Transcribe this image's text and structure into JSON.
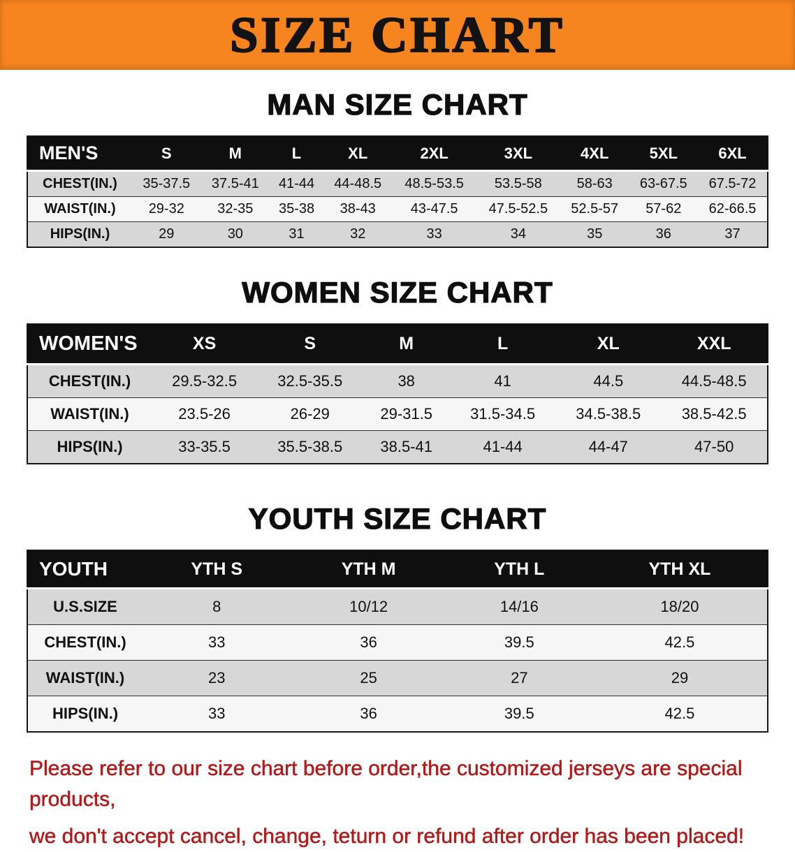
{
  "banner": {
    "title": "SIZE CHART"
  },
  "colors": {
    "banner_bg": "#f6841f",
    "banner_text": "#131313",
    "table_header_bg": "#0f0f0f",
    "table_header_text": "#ffffff",
    "row_shade": "#d7d7d7",
    "row_light": "#f6f6f6",
    "footer_text": "#b11a1a"
  },
  "chart_data": [
    {
      "type": "table",
      "title": "MAN SIZE CHART",
      "corner_label": "MEN'S",
      "columns": [
        "S",
        "M",
        "L",
        "XL",
        "2XL",
        "3XL",
        "4XL",
        "5XL",
        "6XL"
      ],
      "rows": [
        {
          "label": "CHEST(IN.)",
          "values": [
            "35-37.5",
            "37.5-41",
            "41-44",
            "44-48.5",
            "48.5-53.5",
            "53.5-58",
            "58-63",
            "63-67.5",
            "67.5-72"
          ]
        },
        {
          "label": "WAIST(IN.)",
          "values": [
            "29-32",
            "32-35",
            "35-38",
            "38-43",
            "43-47.5",
            "47.5-52.5",
            "52.5-57",
            "57-62",
            "62-66.5"
          ]
        },
        {
          "label": "HIPS(IN.)",
          "values": [
            "29",
            "30",
            "31",
            "32",
            "33",
            "34",
            "35",
            "36",
            "37"
          ]
        }
      ]
    },
    {
      "type": "table",
      "title": "WOMEN SIZE CHART",
      "corner_label": "WOMEN'S",
      "columns": [
        "XS",
        "S",
        "M",
        "L",
        "XL",
        "XXL"
      ],
      "rows": [
        {
          "label": "CHEST(IN.)",
          "values": [
            "29.5-32.5",
            "32.5-35.5",
            "38",
            "41",
            "44.5",
            "44.5-48.5"
          ]
        },
        {
          "label": "WAIST(IN.)",
          "values": [
            "23.5-26",
            "26-29",
            "29-31.5",
            "31.5-34.5",
            "34.5-38.5",
            "38.5-42.5"
          ]
        },
        {
          "label": "HIPS(IN.)",
          "values": [
            "33-35.5",
            "35.5-38.5",
            "38.5-41",
            "41-44",
            "44-47",
            "47-50"
          ]
        }
      ]
    },
    {
      "type": "table",
      "title": "YOUTH SIZE CHART",
      "corner_label": "YOUTH",
      "columns": [
        "YTH S",
        "YTH M",
        "YTH L",
        "YTH XL"
      ],
      "rows": [
        {
          "label": "U.S.SIZE",
          "values": [
            "8",
            "10/12",
            "14/16",
            "18/20"
          ]
        },
        {
          "label": "CHEST(IN.)",
          "values": [
            "33",
            "36",
            "39.5",
            "42.5"
          ]
        },
        {
          "label": "WAIST(IN.)",
          "values": [
            "23",
            "25",
            "27",
            "29"
          ]
        },
        {
          "label": "HIPS(IN.)",
          "values": [
            "33",
            "36",
            "39.5",
            "42.5"
          ]
        }
      ]
    }
  ],
  "footer": {
    "line1": "Please refer to our size chart before order,the customized jerseys are special products,",
    "line2": "we don't accept cancel, change, teturn or refund after order has been placed!"
  }
}
